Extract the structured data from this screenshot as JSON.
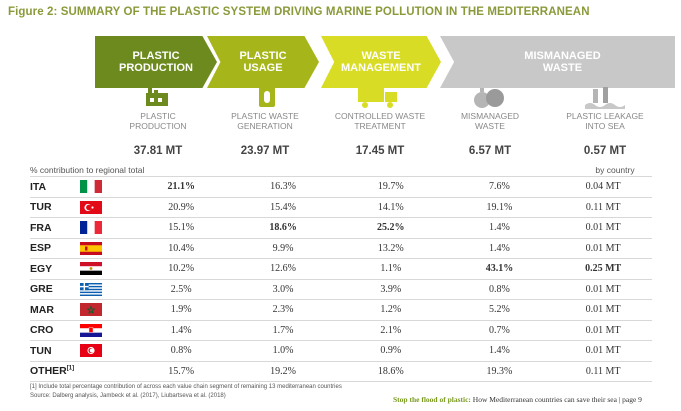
{
  "figure_title": "Figure 2: SUMMARY OF THE PLASTIC SYSTEM DRIVING MARINE POLLUTION IN THE MEDITERRANEAN",
  "header": {
    "stage1": [
      "PLASTIC",
      "PRODUCTION"
    ],
    "stage2": [
      "PLASTIC",
      "USAGE"
    ],
    "stage3": [
      "WASTE",
      "MANAGEMENT"
    ],
    "stage4": [
      "MISMANAGED",
      "WASTE"
    ]
  },
  "stages": [
    {
      "label1": "PLASTIC",
      "label2": "PRODUCTION",
      "total": "37.81 MT",
      "icon": "factory-icon"
    },
    {
      "label1": "PLASTIC WASTE",
      "label2": "GENERATION",
      "total": "23.97 MT",
      "icon": "bottle-icon"
    },
    {
      "label1": "CONTROLLED WASTE",
      "label2": "TREATMENT",
      "total": "17.45 MT",
      "icon": "truck-icon"
    },
    {
      "label1": "MISMANAGED",
      "label2": "WASTE",
      "total": "6.57 MT",
      "icon": "trash-bags-icon"
    },
    {
      "label1": "PLASTIC LEAKAGE",
      "label2": "INTO SEA",
      "total": "0.57 MT",
      "icon": "bottles-in-sea-icon"
    }
  ],
  "contrib_label": "% contribution to regional total",
  "by_country_label": "by country",
  "rows": [
    {
      "code": "ITA",
      "flag": "italy-flag",
      "v": [
        "21.1%",
        "16.3%",
        "19.7%",
        "7.6%",
        "0.04 MT"
      ],
      "bold": [
        true,
        false,
        false,
        false,
        false
      ]
    },
    {
      "code": "TUR",
      "flag": "turkey-flag",
      "v": [
        "20.9%",
        "15.4%",
        "14.1%",
        "19.1%",
        "0.11 MT"
      ],
      "bold": [
        false,
        false,
        false,
        false,
        false
      ]
    },
    {
      "code": "FRA",
      "flag": "france-flag",
      "v": [
        "15.1%",
        "18.6%",
        "25.2%",
        "1.4%",
        "0.01 MT"
      ],
      "bold": [
        false,
        true,
        true,
        false,
        false
      ]
    },
    {
      "code": "ESP",
      "flag": "spain-flag",
      "v": [
        "10.4%",
        "9.9%",
        "13.2%",
        "1.4%",
        "0.01 MT"
      ],
      "bold": [
        false,
        false,
        false,
        false,
        false
      ]
    },
    {
      "code": "EGY",
      "flag": "egypt-flag",
      "v": [
        "10.2%",
        "12.6%",
        "1.1%",
        "43.1%",
        "0.25 MT"
      ],
      "bold": [
        false,
        false,
        false,
        true,
        true
      ]
    },
    {
      "code": "GRE",
      "flag": "greece-flag",
      "v": [
        "2.5%",
        "3.0%",
        "3.9%",
        "0.8%",
        "0.01 MT"
      ],
      "bold": [
        false,
        false,
        false,
        false,
        false
      ]
    },
    {
      "code": "MAR",
      "flag": "morocco-flag",
      "v": [
        "1.9%",
        "2.3%",
        "1.2%",
        "5.2%",
        "0.01 MT"
      ],
      "bold": [
        false,
        false,
        false,
        false,
        false
      ]
    },
    {
      "code": "CRO",
      "flag": "croatia-flag",
      "v": [
        "1.4%",
        "1.7%",
        "2.1%",
        "0.7%",
        "0.01 MT"
      ],
      "bold": [
        false,
        false,
        false,
        false,
        false
      ]
    },
    {
      "code": "TUN",
      "flag": "tunisia-flag",
      "v": [
        "0.8%",
        "1.0%",
        "0.9%",
        "1.4%",
        "0.01 MT"
      ],
      "bold": [
        false,
        false,
        false,
        false,
        false
      ]
    },
    {
      "code": "OTHER",
      "sup": "[1]",
      "flag": "",
      "v": [
        "15.7%",
        "19.2%",
        "18.6%",
        "19.3%",
        "0.11 MT"
      ],
      "bold": [
        false,
        false,
        false,
        false,
        false
      ]
    }
  ],
  "notes": [
    "[1] Include total percentage contribution of across each value chain segment of remaining 13 mediterranean countries",
    "Source: Dalberg analysis, Jambeck et al. (2017), Liubartseva et al. (2018)"
  ],
  "footer": {
    "brand": "Stop the flood of plastic:",
    "rest": "How Mediterranean countries can save their sea | page 9"
  },
  "colors": {
    "olive": "#6d8a1f",
    "lime": "#a6b61a",
    "yellow": "#d9dc24",
    "grey": "#c8c8c8",
    "title": "#8a9a3a"
  }
}
